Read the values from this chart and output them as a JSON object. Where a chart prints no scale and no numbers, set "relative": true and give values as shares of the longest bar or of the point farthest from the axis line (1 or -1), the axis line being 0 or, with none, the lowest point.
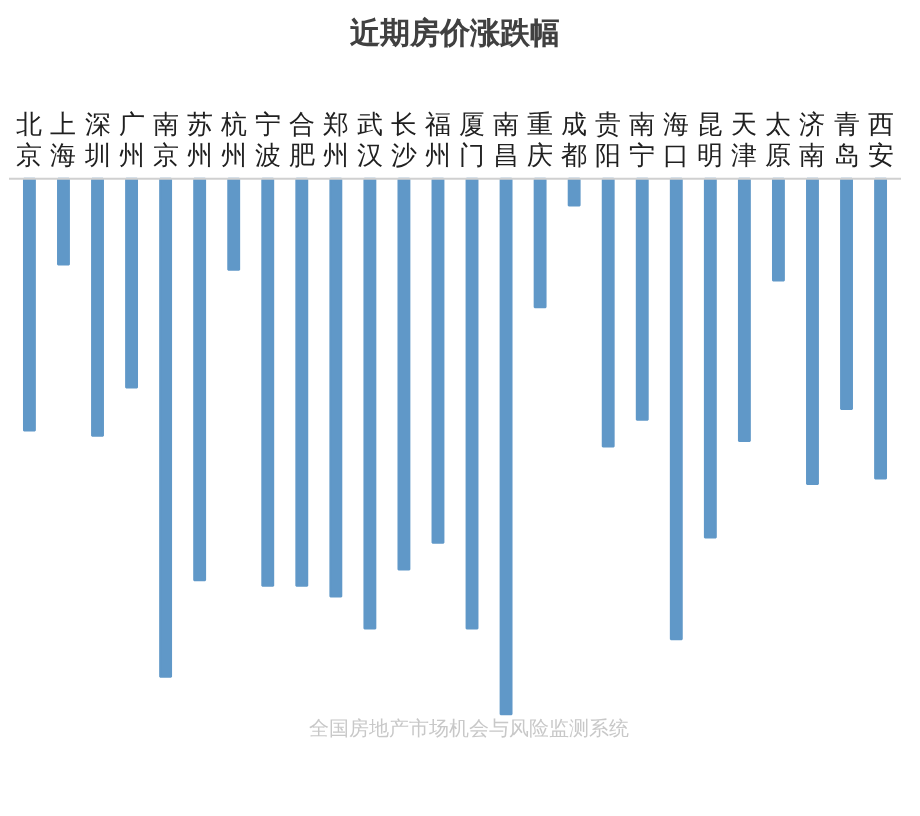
{
  "chart_data": {
    "type": "bar",
    "title": "近期房价涨跌幅",
    "relative": true,
    "color": "#6098c8",
    "categories": [
      "北京",
      "上海",
      "深圳",
      "广州",
      "南京",
      "苏州",
      "杭州",
      "宁波",
      "合肥",
      "郑州",
      "武汉",
      "长沙",
      "福州",
      "厦门",
      "南昌",
      "重庆",
      "成都",
      "贵阳",
      "南宁",
      "海口",
      "昆明",
      "天津",
      "太原",
      "济南",
      "青岛",
      "西安"
    ],
    "values": [
      -0.47,
      -0.16,
      -0.48,
      -0.39,
      -0.93,
      -0.75,
      -0.17,
      -0.76,
      -0.76,
      -0.78,
      -0.84,
      -0.73,
      -0.68,
      -0.84,
      -1,
      -0.24,
      -0.05,
      -0.5,
      -0.45,
      -0.86,
      -0.67,
      -0.49,
      -0.19,
      -0.57,
      -0.43,
      -0.56
    ],
    "annotations": [
      "全国房地产市场机会与风险监测系统"
    ]
  }
}
